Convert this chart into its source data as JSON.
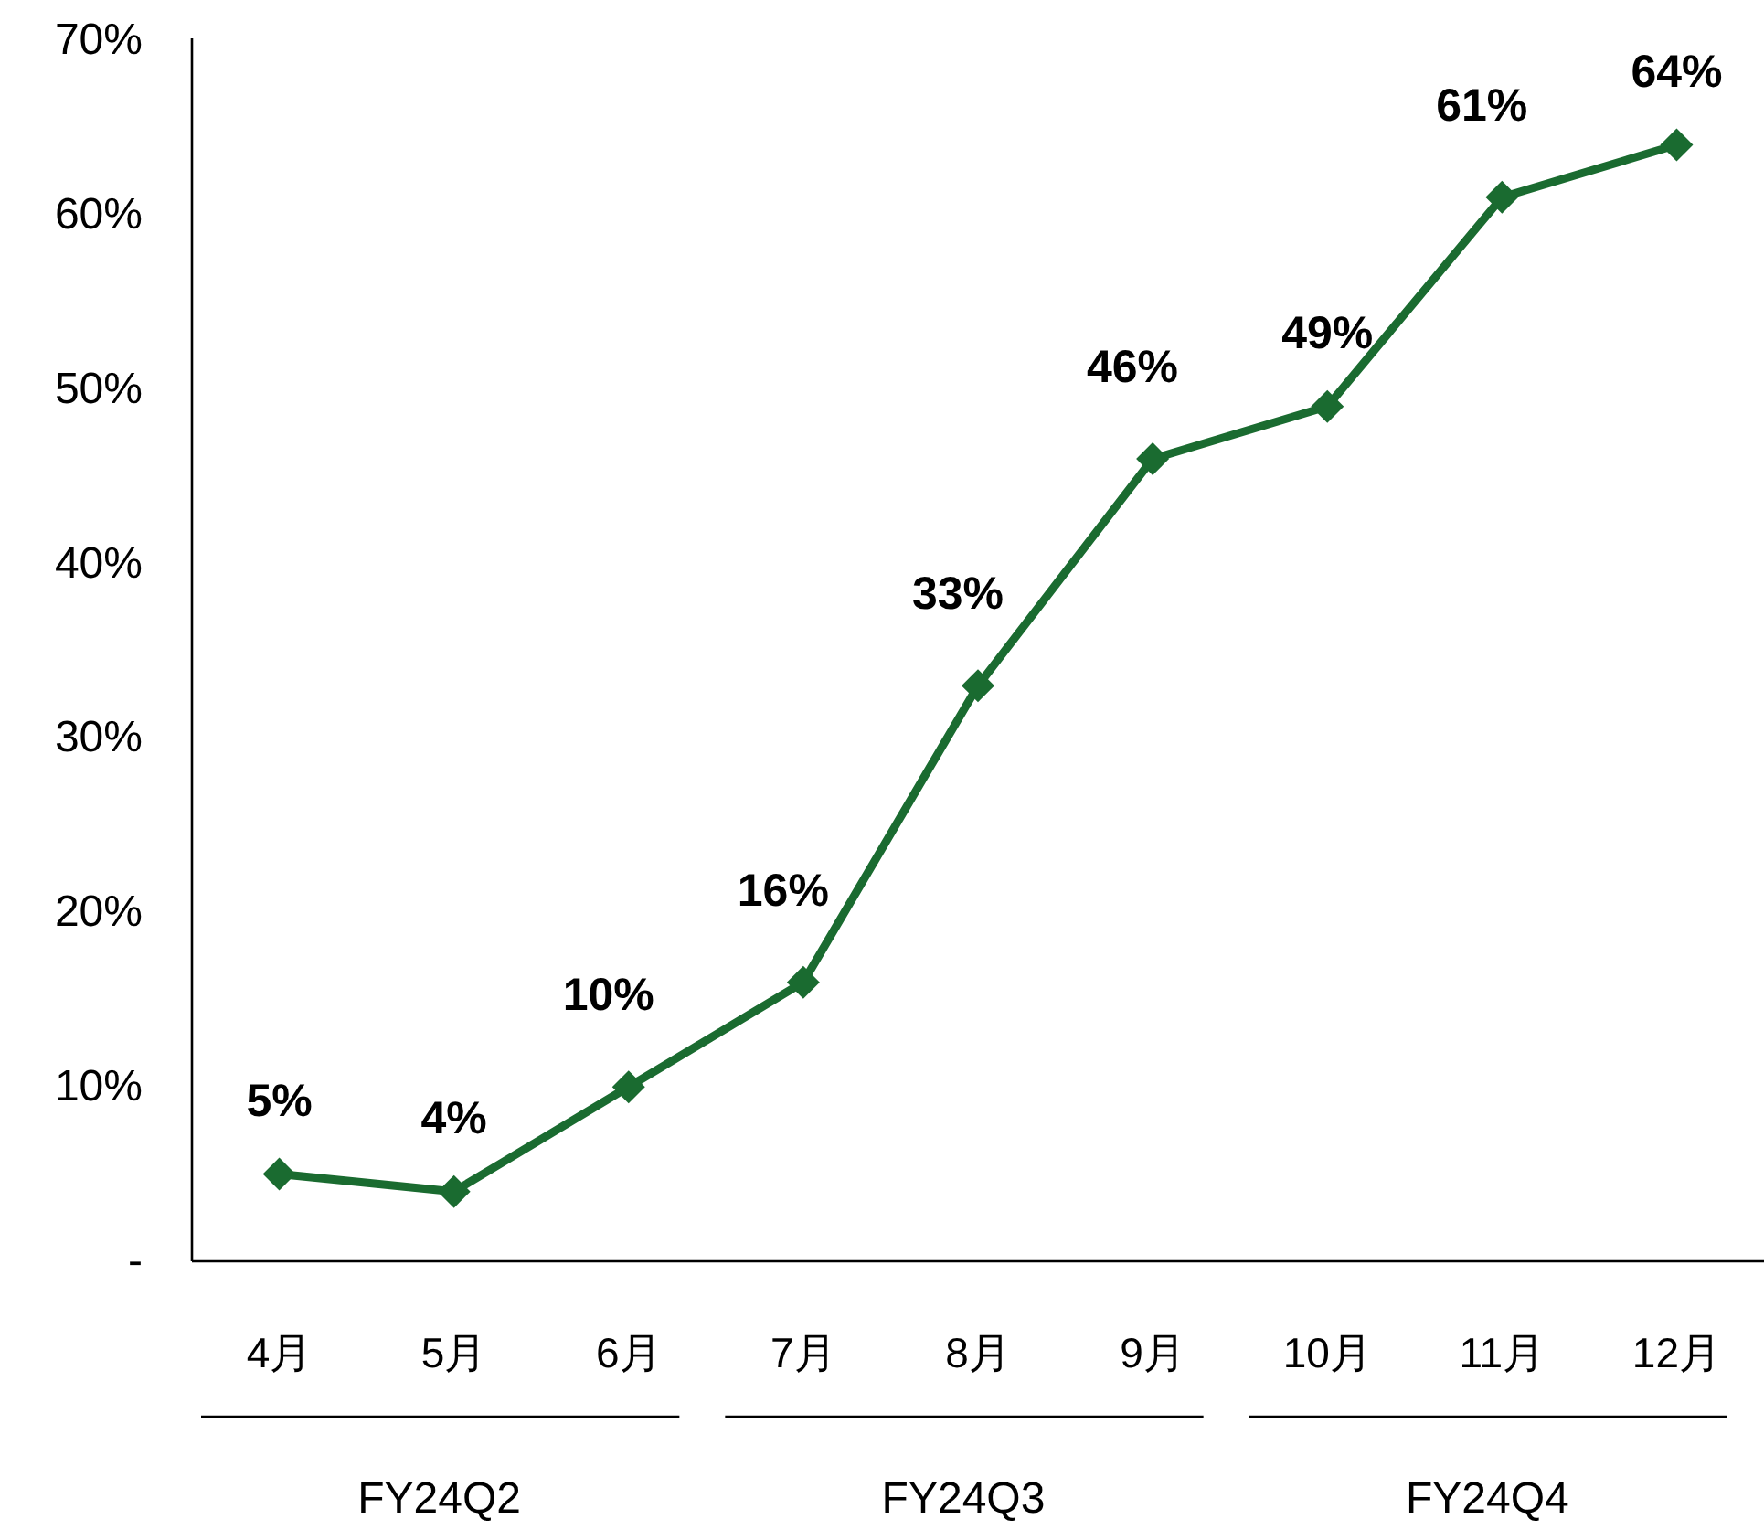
{
  "chart_data": {
    "type": "line",
    "categories": [
      "4月",
      "5月",
      "6月",
      "7月",
      "8月",
      "9月",
      "10月",
      "11月",
      "12月"
    ],
    "series": [
      {
        "color": "#1a6b30",
        "values": [
          5,
          4,
          10,
          16,
          33,
          46,
          49,
          61,
          64
        ]
      }
    ],
    "ylim": [
      0,
      70
    ],
    "yticks": [
      {
        "value": 0,
        "label": "-"
      },
      {
        "value": 10,
        "label": "10%"
      },
      {
        "value": 20,
        "label": "20%"
      },
      {
        "value": 30,
        "label": "30%"
      },
      {
        "value": 40,
        "label": "40%"
      },
      {
        "value": 50,
        "label": "50%"
      },
      {
        "value": 60,
        "label": "60%"
      },
      {
        "value": 70,
        "label": "70%"
      }
    ],
    "value_labels": [
      "5%",
      "4%",
      "10%",
      "16%",
      "33%",
      "46%",
      "49%",
      "61%",
      "64%"
    ],
    "marker": "diamond",
    "line_style": "solid",
    "grid": false,
    "annotations": [
      "FY24Q2",
      "FY24Q3",
      "FY24Q4"
    ]
  }
}
